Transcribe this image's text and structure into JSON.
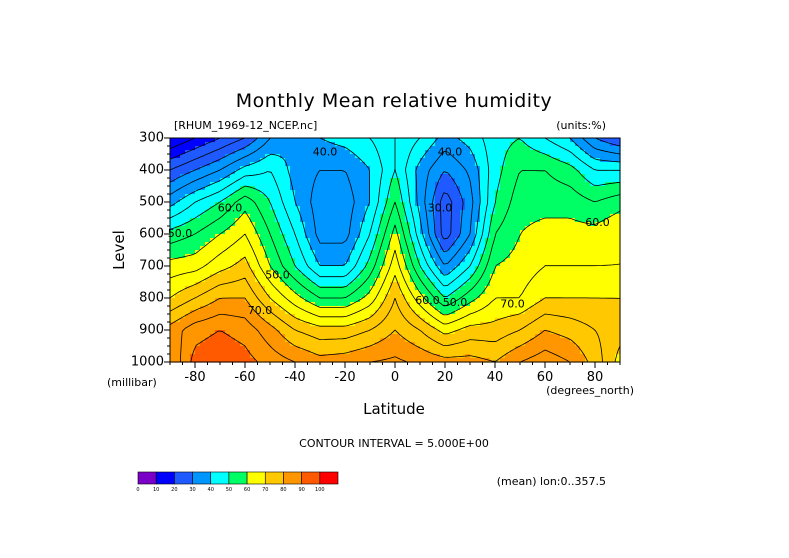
{
  "chart_data": {
    "type": "heatmap",
    "title": "Monthly Mean relative humidity",
    "file_label": "[RHUM_1969-12_NCEP.nc]",
    "units_label": "(units:%)",
    "xlabel": "Latitude",
    "x_units": "(degrees_north)",
    "ylabel": "Level",
    "y_units": "(millibar)",
    "xlim": [
      -90,
      90
    ],
    "ylim": [
      1000,
      300
    ],
    "x_ticks": [
      "-80",
      "-60",
      "-40",
      "-20",
      "0",
      "20",
      "40",
      "60",
      "80"
    ],
    "x_tick_values": [
      -80,
      -60,
      -40,
      -20,
      0,
      20,
      40,
      60,
      80
    ],
    "y_ticks": [
      "300",
      "400",
      "500",
      "600",
      "700",
      "800",
      "900",
      "1000"
    ],
    "y_tick_values": [
      300,
      400,
      500,
      600,
      700,
      800,
      900,
      1000
    ],
    "contour_interval_text": "CONTOUR INTERVAL = 5.000E+00",
    "footer_text": "(mean) lon:0..357.5",
    "colorbar": {
      "levels": [
        0,
        10,
        20,
        30,
        40,
        50,
        60,
        70,
        80,
        90,
        100
      ],
      "labels": [
        "0",
        "10",
        "20",
        "30",
        "40",
        "50",
        "60",
        "70",
        "80",
        "90",
        "100"
      ],
      "colors": [
        "#7a00c8",
        "#0000ff",
        "#1e5aff",
        "#0096ff",
        "#00ffff",
        "#00ff64",
        "#ffff00",
        "#ffc800",
        "#ff9600",
        "#ff5a00",
        "#ff0000"
      ]
    },
    "contour_labels": [
      {
        "text": "40.0",
        "x": -28,
        "y": 345
      },
      {
        "text": "40.0",
        "x": 22,
        "y": 345
      },
      {
        "text": "30.0",
        "x": 18,
        "y": 520
      },
      {
        "text": "60.0",
        "x": -66,
        "y": 520
      },
      {
        "text": "50.0",
        "x": -86,
        "y": 600
      },
      {
        "text": "50.0",
        "x": -47,
        "y": 730
      },
      {
        "text": "70.0",
        "x": -54,
        "y": 840
      },
      {
        "text": "60.0",
        "x": 13,
        "y": 810
      },
      {
        "text": "50.0",
        "x": 24,
        "y": 815
      },
      {
        "text": "70.0",
        "x": 47,
        "y": 820
      },
      {
        "text": "60.0",
        "x": 81,
        "y": 565
      }
    ],
    "series": [
      {
        "x": -90,
        "values": [
          10,
          25,
          38,
          52,
          62,
          70,
          82,
          80
        ]
      },
      {
        "x": -80,
        "values": [
          15,
          30,
          45,
          55,
          63,
          75,
          88,
          92
        ]
      },
      {
        "x": -70,
        "values": [
          20,
          35,
          50,
          60,
          68,
          80,
          90,
          94
        ]
      },
      {
        "x": -60,
        "values": [
          25,
          42,
          58,
          65,
          72,
          80,
          88,
          92
        ]
      },
      {
        "x": -50,
        "values": [
          35,
          45,
          50,
          55,
          60,
          70,
          82,
          88
        ]
      },
      {
        "x": -40,
        "values": [
          40,
          38,
          40,
          45,
          50,
          62,
          75,
          85
        ]
      },
      {
        "x": -30,
        "values": [
          40,
          35,
          32,
          33,
          40,
          55,
          72,
          82
        ]
      },
      {
        "x": -20,
        "values": [
          42,
          35,
          32,
          33,
          40,
          55,
          72,
          83
        ]
      },
      {
        "x": -10,
        "values": [
          45,
          40,
          40,
          45,
          52,
          62,
          75,
          85
        ]
      },
      {
        "x": 0,
        "values": [
          50,
          50,
          55,
          62,
          68,
          75,
          80,
          86
        ]
      },
      {
        "x": 10,
        "values": [
          45,
          38,
          38,
          42,
          50,
          62,
          75,
          84
        ]
      },
      {
        "x": 20,
        "values": [
          38,
          30,
          22,
          22,
          35,
          50,
          68,
          82
        ]
      },
      {
        "x": 30,
        "values": [
          42,
          36,
          33,
          35,
          45,
          58,
          72,
          82
        ]
      },
      {
        "x": 40,
        "values": [
          48,
          48,
          50,
          55,
          60,
          65,
          72,
          80
        ]
      },
      {
        "x": 50,
        "values": [
          50,
          55,
          58,
          60,
          62,
          65,
          75,
          85
        ]
      },
      {
        "x": 60,
        "values": [
          45,
          55,
          58,
          62,
          65,
          70,
          80,
          88
        ]
      },
      {
        "x": 70,
        "values": [
          40,
          52,
          58,
          62,
          65,
          70,
          78,
          85
        ]
      },
      {
        "x": 80,
        "values": [
          30,
          45,
          55,
          62,
          65,
          70,
          75,
          78
        ]
      },
      {
        "x": 90,
        "values": [
          25,
          45,
          58,
          65,
          65,
          70,
          72,
          68
        ]
      }
    ]
  }
}
